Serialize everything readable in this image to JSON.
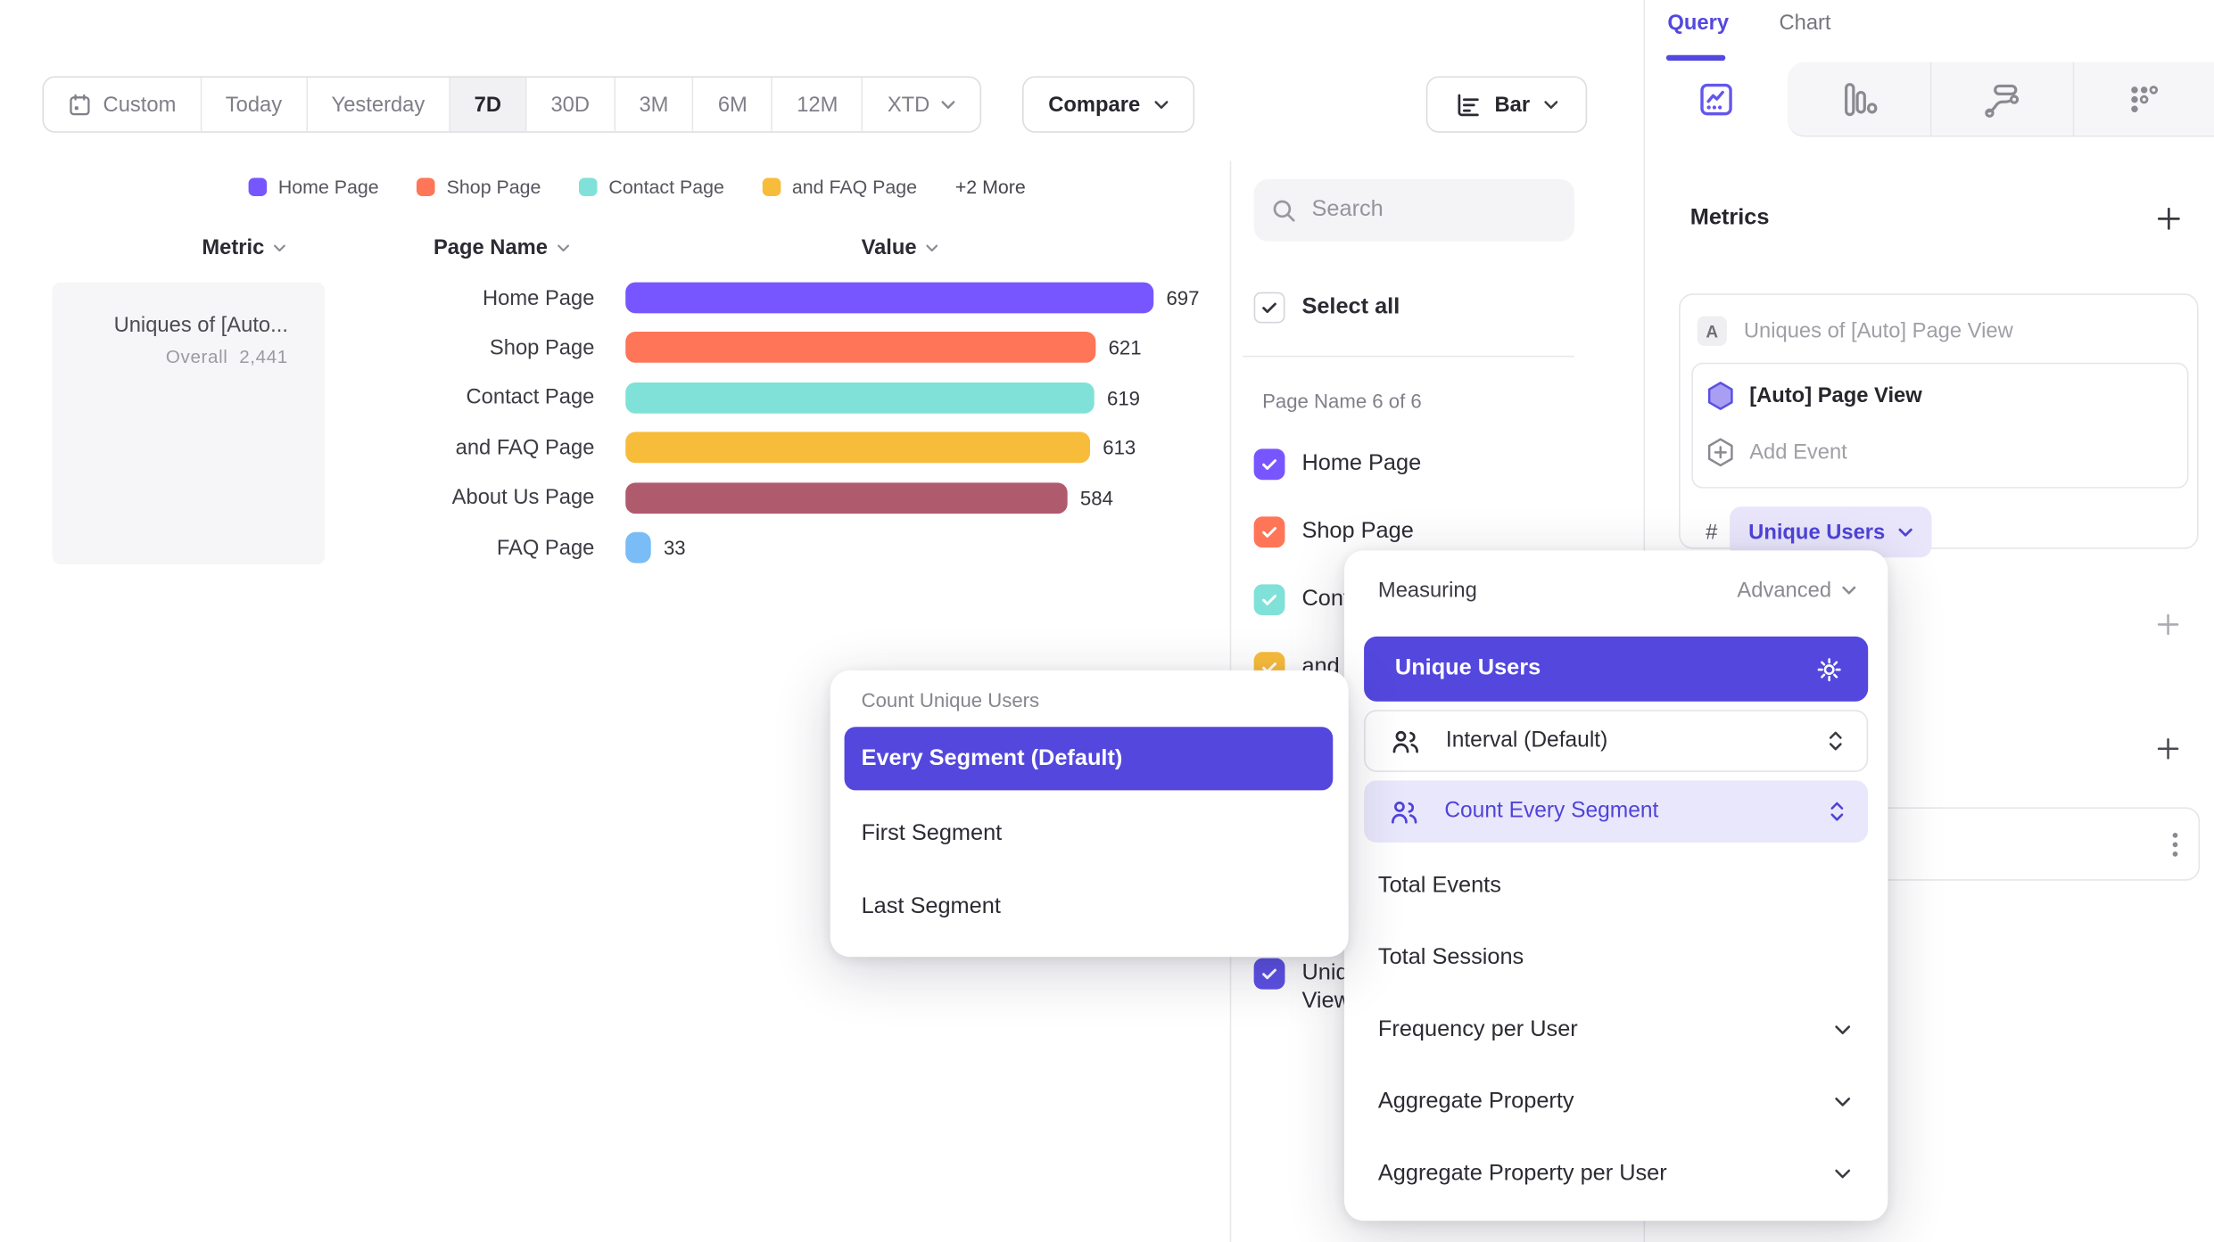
{
  "toolbar": {
    "date_ranges": [
      "Custom",
      "Today",
      "Yesterday",
      "7D",
      "30D",
      "3M",
      "6M",
      "12M",
      "XTD"
    ],
    "selected_range": "7D",
    "compare_label": "Compare",
    "chart_type_label": "Bar"
  },
  "legend": {
    "items": [
      {
        "label": "Home Page",
        "color": "#7856FF"
      },
      {
        "label": "Shop Page",
        "color": "#FF7557"
      },
      {
        "label": "Contact Page",
        "color": "#80E1D9"
      },
      {
        "label": "and FAQ Page",
        "color": "#F8BC3B"
      }
    ],
    "more_label": "+2 More"
  },
  "table": {
    "columns": [
      "Metric",
      "Page Name",
      "Value"
    ],
    "metric_cell": {
      "title": "Uniques of [Auto...",
      "overall_label": "Overall",
      "overall_value": "2,441"
    }
  },
  "chart_data": {
    "type": "bar",
    "title": "Uniques of [Auto] Page View",
    "categories": [
      "Home Page",
      "Shop Page",
      "Contact Page",
      "and FAQ Page",
      "About Us Page",
      "FAQ Page"
    ],
    "values": [
      697,
      621,
      619,
      613,
      584,
      33
    ],
    "colors": [
      "#7856FF",
      "#FF7557",
      "#80E1D9",
      "#F8BC3B",
      "#B05A6E",
      "#7ABCF5"
    ],
    "overall_total": 2441,
    "xlabel": "Value",
    "ylabel": "Page Name",
    "xlim": [
      0,
      697
    ],
    "orientation": "horizontal",
    "grid": false,
    "legend_position": "top"
  },
  "filter_panel": {
    "search_placeholder": "Search",
    "select_all_label": "Select all",
    "group_label": "Page Name 6 of 6",
    "items": [
      {
        "label": "Home Page",
        "color": "#7856FF"
      },
      {
        "label": "Shop Page",
        "color": "#FF7557"
      },
      {
        "label": "Contact Page",
        "color": "#80E1D9"
      },
      {
        "label": "and FAQ Page",
        "color": "#F8BC3B"
      },
      {
        "label": "About Us Page",
        "color": "#B05A6E"
      },
      {
        "label": "FAQ Page",
        "color": "#7ABCF5"
      }
    ],
    "metric_item": {
      "label": "Uniques of [Auto] Page View",
      "color": "#5B50E5"
    }
  },
  "right_panel": {
    "tabs": [
      "Query",
      "Chart"
    ],
    "active_tab": "Query",
    "view_icons": [
      "insights",
      "funnels",
      "flows",
      "retention"
    ],
    "metrics": {
      "heading": "Metrics",
      "row_badge": "A",
      "row_title": "Uniques of [Auto] Page View",
      "event_name": "[Auto] Page View",
      "add_event_label": "Add Event",
      "hash_symbol": "#",
      "measurement_label": "Unique Users"
    }
  },
  "measuring_popup": {
    "title": "Measuring",
    "advanced_label": "Advanced",
    "selected_measurement": "Unique Users",
    "interval_label": "Interval (Default)",
    "segment_mode_label": "Count Every Segment",
    "options": [
      "Total Events",
      "Total Sessions"
    ],
    "expandable_options": [
      "Frequency per User",
      "Aggregate Property",
      "Aggregate Property per User"
    ]
  },
  "count_popup": {
    "title": "Count Unique Users",
    "selected": "Every Segment (Default)",
    "options": [
      "First Segment",
      "Last Segment"
    ]
  },
  "colors": {
    "accent_indigo": "#5347DE",
    "accent_indigo_text": "#4F43D8",
    "accent_lavender_bg": "#E9E6FB",
    "text_dark": "#2B2B33",
    "text_gray": "#8E8E96",
    "border": "#E6E6EA"
  }
}
